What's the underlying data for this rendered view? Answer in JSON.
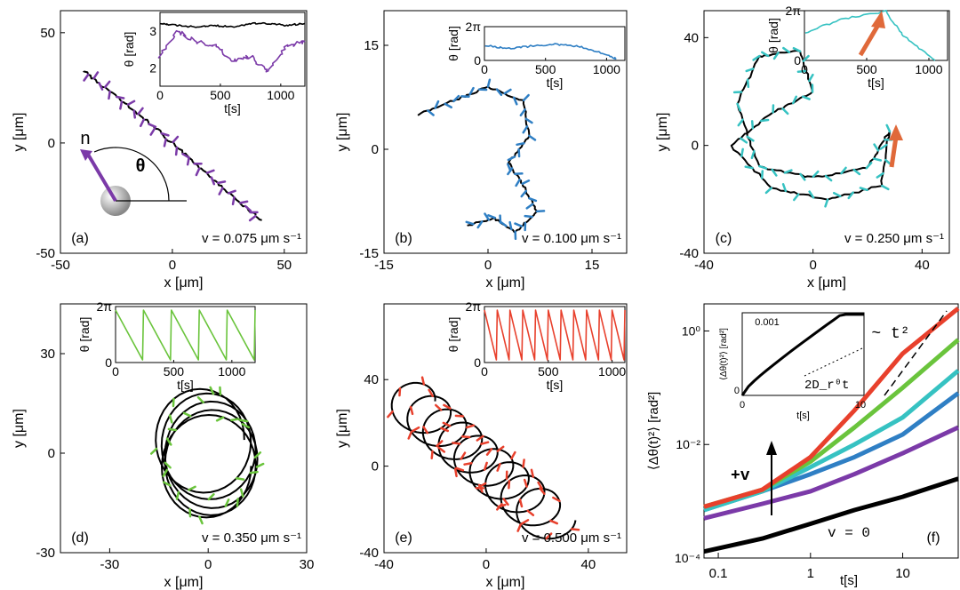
{
  "figure": {
    "y_label": "y [μm]",
    "x_label": "x [μm]",
    "theta_label": "θ [rad]",
    "t_label": "t[s]",
    "schematic": {
      "n_label": "n",
      "theta_symbol": "θ"
    }
  },
  "colors": {
    "purple": "#7b3aa8",
    "blue": "#2f7fc4",
    "cyan": "#36c2c2",
    "green": "#6ac43c",
    "red": "#e8402c",
    "black": "#000000",
    "orange_arrow": "#e0693a"
  },
  "chart_data": [
    {
      "type": "line",
      "panel": "(a)",
      "velocity_label": "v = 0.075 μm s⁻¹",
      "xlim": [
        -50,
        60
      ],
      "ylim": [
        -50,
        60
      ],
      "xticks": [
        "-50",
        "0",
        "50"
      ],
      "yticks": [
        "-50",
        "0",
        "50"
      ],
      "trajectory": {
        "x": [
          -40,
          -30,
          -20,
          -10,
          0,
          10,
          20,
          30,
          40
        ],
        "y": [
          33,
          25,
          17,
          9,
          0,
          -9,
          -18,
          -27,
          -35
        ]
      },
      "inset": {
        "xlim": [
          0,
          1200
        ],
        "ylim": [
          1.5,
          3.5
        ],
        "xticks": [
          "0",
          "500",
          "1000"
        ],
        "yticks": [
          "2",
          "3"
        ],
        "series": [
          {
            "t": [
              0,
              150,
              300,
              450,
              600,
              750,
              900,
              1050,
              1200
            ],
            "theta": [
              3.2,
              3.15,
              3.1,
              3.15,
              3.1,
              3.2,
              3.2,
              3.15,
              3.2
            ]
          },
          {
            "t": [
              0,
              150,
              300,
              450,
              600,
              750,
              900,
              1050,
              1200
            ],
            "theta": [
              2.3,
              3.0,
              2.7,
              2.6,
              2.2,
              2.3,
              1.9,
              2.6,
              2.7
            ]
          }
        ]
      }
    },
    {
      "type": "line",
      "panel": "(b)",
      "velocity_label": "v = 0.100 μm s⁻¹",
      "xlim": [
        -15,
        20
      ],
      "ylim": [
        -15,
        20
      ],
      "xticks": [
        "-15",
        "0",
        "15"
      ],
      "yticks": [
        "-15",
        "0",
        "15"
      ],
      "trajectory": {
        "x": [
          -10,
          -5,
          0,
          5,
          6,
          3,
          5,
          7,
          4,
          1,
          -3
        ],
        "y": [
          5,
          7,
          9,
          7,
          2,
          -2,
          -5,
          -9,
          -12,
          -10,
          -11
        ]
      },
      "inset": {
        "xlim": [
          0,
          1150
        ],
        "ylim": [
          0,
          6.28
        ],
        "xticks": [
          "0",
          "500",
          "1000"
        ],
        "yticks": [
          "0",
          "2π"
        ],
        "series": [
          {
            "t": [
              0,
              200,
              400,
              600,
              800,
              1000,
              1080
            ],
            "theta": [
              2.8,
              2.2,
              2.7,
              3.0,
              2.5,
              1.0,
              0.3
            ]
          }
        ]
      }
    },
    {
      "type": "line",
      "panel": "(c)",
      "velocity_label": "v = 0.250 μm s⁻¹",
      "xlim": [
        -40,
        50
      ],
      "ylim": [
        -40,
        50
      ],
      "xticks": [
        "-40",
        "0",
        "40"
      ],
      "yticks": [
        "-40",
        "0",
        "40"
      ],
      "trajectory": {
        "x": [
          -30,
          -15,
          0,
          -5,
          -20,
          -28,
          -20,
          0,
          20,
          28,
          25,
          5,
          -15,
          -30
        ],
        "y": [
          0,
          12,
          20,
          35,
          33,
          15,
          -8,
          -12,
          -8,
          5,
          -15,
          -20,
          -16,
          0
        ]
      },
      "inset": {
        "xlim": [
          0,
          1150
        ],
        "ylim": [
          0,
          6.28
        ],
        "xticks": [
          "0",
          "500",
          "1000"
        ],
        "yticks": [
          "0",
          "2π"
        ],
        "series": [
          {
            "t": [
              0,
              300,
              650,
              800,
              1050
            ],
            "theta": [
              3.5,
              5.2,
              6.2,
              3.0,
              0.0
            ]
          }
        ]
      }
    },
    {
      "type": "line",
      "panel": "(d)",
      "velocity_label": "v = 0.350 μm s⁻¹",
      "xlim": [
        -45,
        30
      ],
      "ylim": [
        -30,
        45
      ],
      "xticks": [
        "-30",
        "0",
        "30"
      ],
      "yticks": [
        "-30",
        "0",
        "30"
      ],
      "trajectory": {
        "center": [
          -3,
          0
        ],
        "radius": 14,
        "loops": 5
      },
      "inset": {
        "xlim": [
          0,
          1200
        ],
        "ylim": [
          0,
          6.28
        ],
        "xticks": [
          "0",
          "500",
          "1000"
        ],
        "yticks": [
          "0",
          "2π"
        ],
        "series": [
          {
            "sawtooth_periods": 5
          }
        ]
      }
    },
    {
      "type": "line",
      "panel": "(e)",
      "velocity_label": "v = 0.500 μm s⁻¹",
      "xlim": [
        -40,
        55
      ],
      "ylim": [
        -40,
        75
      ],
      "xticks": [
        "-40",
        "0",
        "40"
      ],
      "yticks": [
        "-40",
        "0",
        "40"
      ],
      "trajectory": {
        "start": [
          -30,
          30
        ],
        "end": [
          25,
          -25
        ],
        "radius": 10,
        "loops": 9
      },
      "inset": {
        "xlim": [
          0,
          1100
        ],
        "ylim": [
          0,
          6.28
        ],
        "xticks": [
          "0",
          "500",
          "1000"
        ],
        "yticks": [
          "0",
          "2π"
        ],
        "series": [
          {
            "sawtooth_periods": 11
          }
        ]
      }
    },
    {
      "type": "line",
      "panel": "(f)",
      "log_x": true,
      "log_y": true,
      "xlim": [
        0.07,
        40
      ],
      "ylim": [
        0.0001,
        3
      ],
      "xticks": [
        "0.1",
        "1",
        "10"
      ],
      "yticks": [
        "10⁻⁴",
        "10⁻²",
        "10⁰"
      ],
      "xlabel": "t[s]",
      "ylabel": "⟨Δθ(t)²⟩ [rad²]",
      "annotations": {
        "slope": "~ t²",
        "increasing": "+v",
        "zero_velocity": "v = 0"
      },
      "series": [
        {
          "x": [
            0.07,
            0.3,
            1,
            3,
            10,
            40
          ],
          "y": [
            0.00013,
            0.00022,
            0.0004,
            0.0007,
            0.0012,
            0.0025
          ]
        },
        {
          "x": [
            0.07,
            0.3,
            1,
            3,
            10,
            40
          ],
          "y": [
            0.0005,
            0.0009,
            0.0015,
            0.003,
            0.007,
            0.02
          ]
        },
        {
          "x": [
            0.07,
            0.3,
            1,
            3,
            10,
            40
          ],
          "y": [
            0.0007,
            0.0015,
            0.003,
            0.006,
            0.015,
            0.08
          ]
        },
        {
          "x": [
            0.07,
            0.3,
            1,
            3,
            10,
            40
          ],
          "y": [
            0.0007,
            0.0015,
            0.004,
            0.01,
            0.03,
            0.2
          ]
        },
        {
          "x": [
            0.07,
            0.3,
            1,
            3,
            10,
            40
          ],
          "y": [
            0.0008,
            0.0016,
            0.005,
            0.02,
            0.1,
            0.7
          ]
        },
        {
          "x": [
            0.07,
            0.3,
            1,
            3,
            10,
            40
          ],
          "y": [
            0.0008,
            0.0016,
            0.006,
            0.04,
            0.4,
            2.5
          ]
        }
      ],
      "inset": {
        "xlim": [
          0,
          10
        ],
        "ylim": [
          0,
          0.001
        ],
        "xticks": [
          "0",
          "10"
        ],
        "yticks": [
          "0",
          "0.001"
        ],
        "xlabel": "t[s]",
        "ylabel": "⟨Δθ(t)²⟩ [rad²]",
        "annotation": "2D_r⁰t"
      }
    }
  ]
}
